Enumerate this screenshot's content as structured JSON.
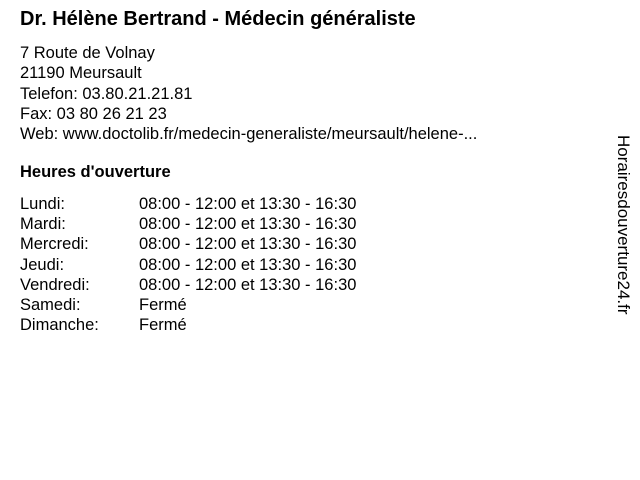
{
  "title": "Dr. Hélène Bertrand - Médecin généraliste",
  "address": {
    "street": "7 Route de Volnay",
    "city": "21190 Meursault",
    "phone": "Telefon: 03.80.21.21.81",
    "fax": "Fax: 03 80 26 21 23",
    "web": "Web: www.doctolib.fr/medecin-generaliste/meursault/helene-..."
  },
  "hours_heading": "Heures d'ouverture",
  "hours": [
    {
      "day": "Lundi:",
      "time": "08:00 - 12:00 et 13:30 - 16:30"
    },
    {
      "day": "Mardi:",
      "time": "08:00 - 12:00 et 13:30 - 16:30"
    },
    {
      "day": "Mercredi:",
      "time": "08:00 - 12:00 et 13:30 - 16:30"
    },
    {
      "day": "Jeudi:",
      "time": "08:00 - 12:00 et 13:30 - 16:30"
    },
    {
      "day": "Vendredi:",
      "time": "08:00 - 12:00 et 13:30 - 16:30"
    },
    {
      "day": "Samedi:",
      "time": "Fermé"
    },
    {
      "day": "Dimanche:",
      "time": "Fermé"
    }
  ],
  "watermark": "Horairesdouverture24.fr"
}
